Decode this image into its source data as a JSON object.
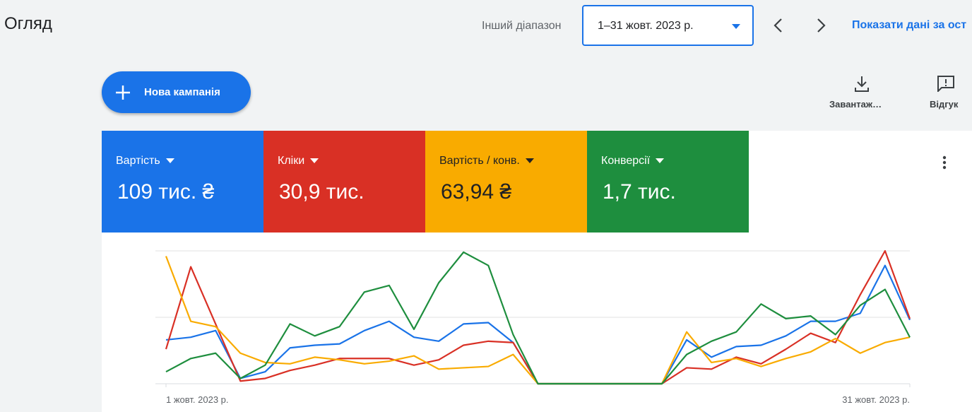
{
  "header": {
    "title": "Огляд",
    "range_label": "Інший діапазон",
    "date_range": "1–31 жовт. 2023 р.",
    "show_link": "Показати дані за ост"
  },
  "actions": {
    "new_campaign": "Нова кампанія",
    "download": "Завантаж…",
    "feedback": "Відгук"
  },
  "chart_data": {
    "type": "line",
    "categories": [
      "1 жовт. 2023 р.",
      null,
      null,
      null,
      null,
      null,
      null,
      null,
      null,
      null,
      null,
      null,
      null,
      null,
      null,
      null,
      null,
      null,
      null,
      null,
      null,
      null,
      null,
      null,
      null,
      null,
      null,
      null,
      null,
      null,
      "31 жовт. 2023 р."
    ],
    "ylim": [
      0,
      100
    ],
    "series": [
      {
        "name": "Вартість",
        "total_label": "109 тис. ₴",
        "color": "#1a73e8",
        "values": [
          33,
          35,
          40,
          4,
          9,
          27,
          29,
          30,
          40,
          47,
          35,
          32,
          45,
          46,
          31,
          0,
          0,
          0,
          0,
          0,
          0,
          33,
          20,
          28,
          29,
          36,
          47,
          47,
          53,
          89,
          48
        ]
      },
      {
        "name": "Кліки",
        "total_label": "30,9 тис.",
        "color": "#d93025",
        "values": [
          26,
          88,
          45,
          2,
          4,
          10,
          14,
          19,
          19,
          19,
          14,
          18,
          29,
          32,
          31,
          0,
          0,
          0,
          0,
          0,
          0,
          12,
          11,
          20,
          15,
          26,
          38,
          31,
          67,
          100,
          49
        ]
      },
      {
        "name": "Вартість / конв.",
        "total_label": "63,94 ₴",
        "color": "#f9ab00",
        "values": [
          96,
          47,
          43,
          23,
          16,
          15,
          20,
          18,
          15,
          17,
          21,
          11,
          12,
          13,
          22,
          0,
          0,
          0,
          0,
          0,
          0,
          39,
          16,
          19,
          13,
          19,
          24,
          34,
          23,
          31,
          35
        ]
      },
      {
        "name": "Конверсії",
        "total_label": "1,7 тис.",
        "color": "#1e8e3e",
        "values": [
          9,
          19,
          23,
          4,
          14,
          45,
          36,
          43,
          69,
          74,
          41,
          76,
          99,
          89,
          37,
          0,
          0,
          0,
          0,
          0,
          0,
          22,
          32,
          39,
          60,
          49,
          51,
          37,
          59,
          71,
          35
        ]
      }
    ]
  }
}
